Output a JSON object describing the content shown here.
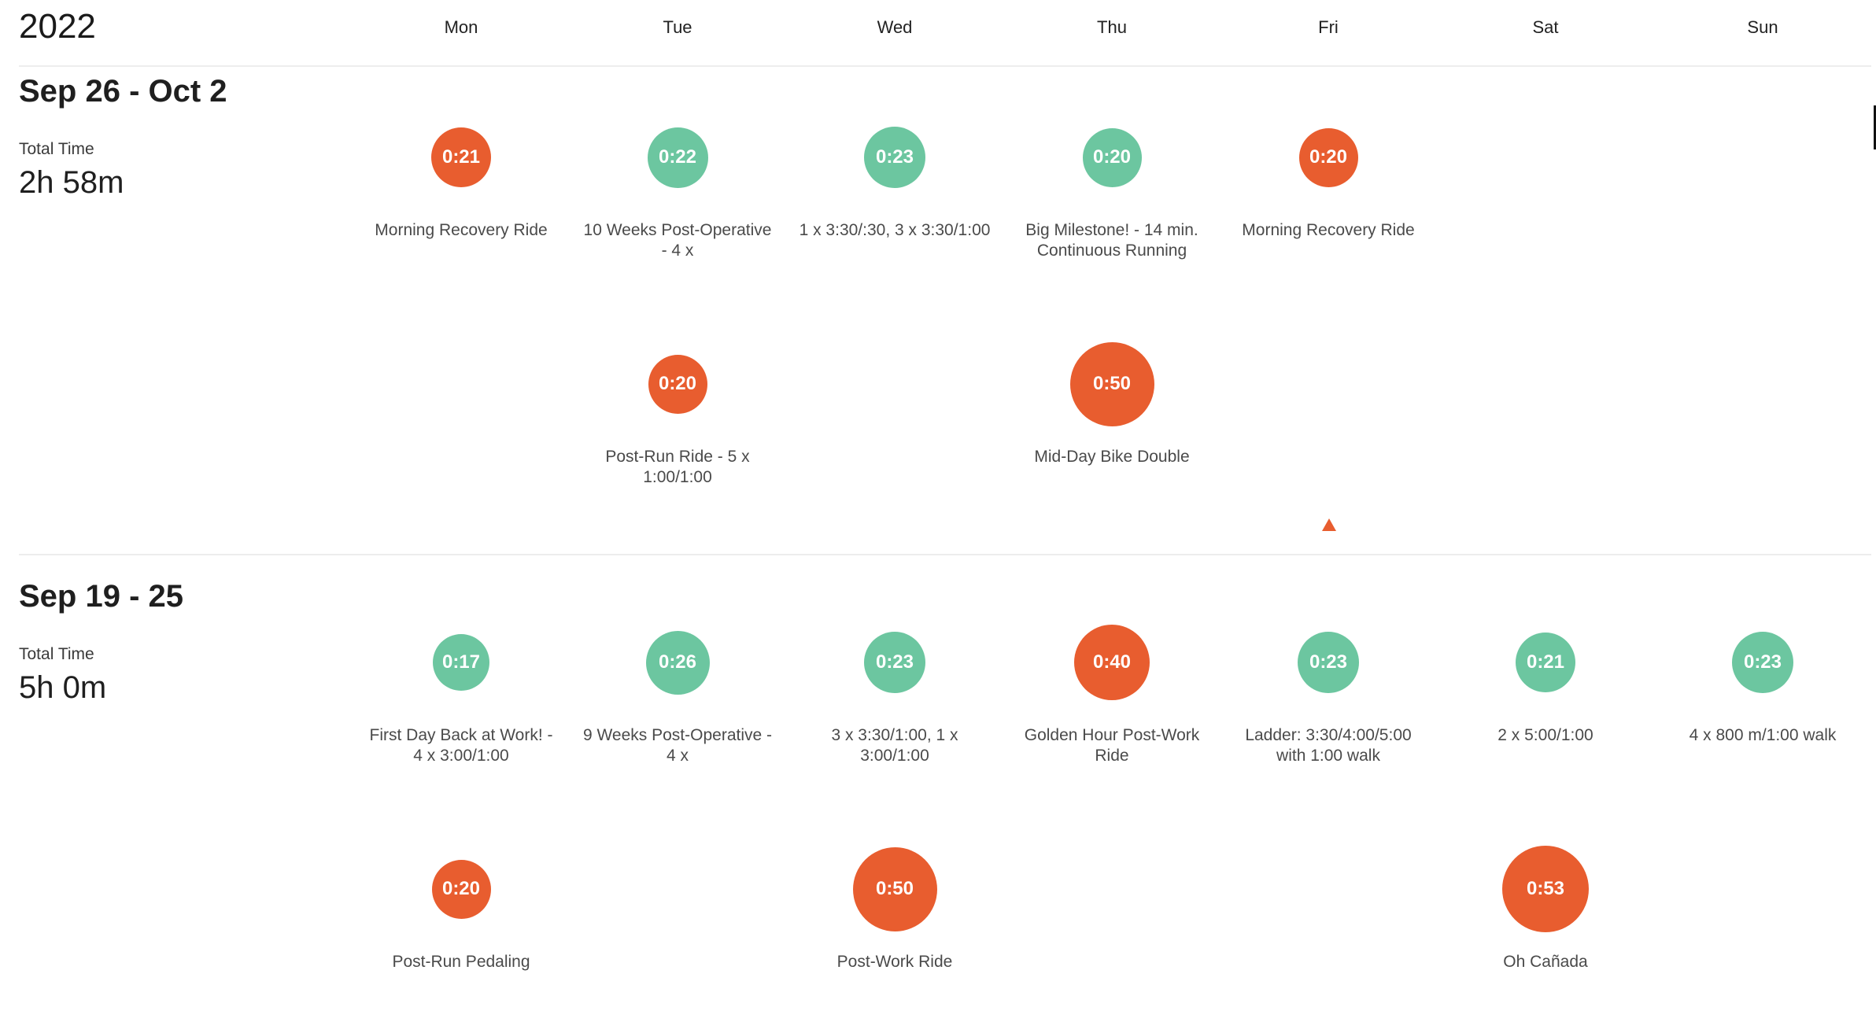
{
  "year": "2022",
  "days": [
    "Mon",
    "Tue",
    "Wed",
    "Thu",
    "Fri",
    "Sat",
    "Sun"
  ],
  "colors": {
    "run": "#6cc6a0",
    "ride": "#e85d2f"
  },
  "weeks": [
    {
      "title": "Sep 26 - Oct 2",
      "total_label": "Total Time",
      "total_value": "2h 58m",
      "activities": [
        {
          "day": "Mon",
          "time": "0:21",
          "type": "ride",
          "label": "Morning Recovery Ride"
        },
        {
          "day": "Tue",
          "time": "0:22",
          "type": "run",
          "label": "10 Weeks Post-Operative - 4 x"
        },
        {
          "day": "Wed",
          "time": "0:23",
          "type": "run",
          "label": "1 x 3:30/:30, 3 x 3:30/1:00"
        },
        {
          "day": "Thu",
          "time": "0:20",
          "type": "run",
          "label": "Big Milestone! - 14 min. Continuous Running"
        },
        {
          "day": "Fri",
          "time": "0:20",
          "type": "ride",
          "label": "Morning Recovery Ride"
        },
        {
          "day": "Tue",
          "time": "0:20",
          "type": "ride",
          "label": "Post-Run Ride - 5 x 1:00/1:00"
        },
        {
          "day": "Thu",
          "time": "0:50",
          "type": "ride",
          "label": "Mid-Day Bike Double"
        }
      ]
    },
    {
      "title": "Sep 19 - 25",
      "total_label": "Total Time",
      "total_value": "5h 0m",
      "activities": [
        {
          "day": "Mon",
          "time": "0:17",
          "type": "run",
          "label": "First Day Back at Work! - 4 x 3:00/1:00"
        },
        {
          "day": "Tue",
          "time": "0:26",
          "type": "run",
          "label": "9 Weeks Post-Operative - 4 x"
        },
        {
          "day": "Wed",
          "time": "0:23",
          "type": "run",
          "label": "3 x 3:30/1:00, 1 x 3:00/1:00"
        },
        {
          "day": "Thu",
          "time": "0:40",
          "type": "ride",
          "label": "Golden Hour Post-Work Ride"
        },
        {
          "day": "Fri",
          "time": "0:23",
          "type": "run",
          "label": "Ladder: 3:30/4:00/5:00 with 1:00 walk"
        },
        {
          "day": "Sat",
          "time": "0:21",
          "type": "run",
          "label": "2 x 5:00/1:00"
        },
        {
          "day": "Sun",
          "time": "0:23",
          "type": "run",
          "label": "4 x 800 m/1:00 walk"
        },
        {
          "day": "Mon",
          "time": "0:20",
          "type": "ride",
          "label": "Post-Run Pedaling"
        },
        {
          "day": "Wed",
          "time": "0:50",
          "type": "ride",
          "label": "Post-Work Ride"
        },
        {
          "day": "Sat",
          "time": "0:53",
          "type": "ride",
          "label": "Oh Cañada"
        }
      ]
    }
  ]
}
